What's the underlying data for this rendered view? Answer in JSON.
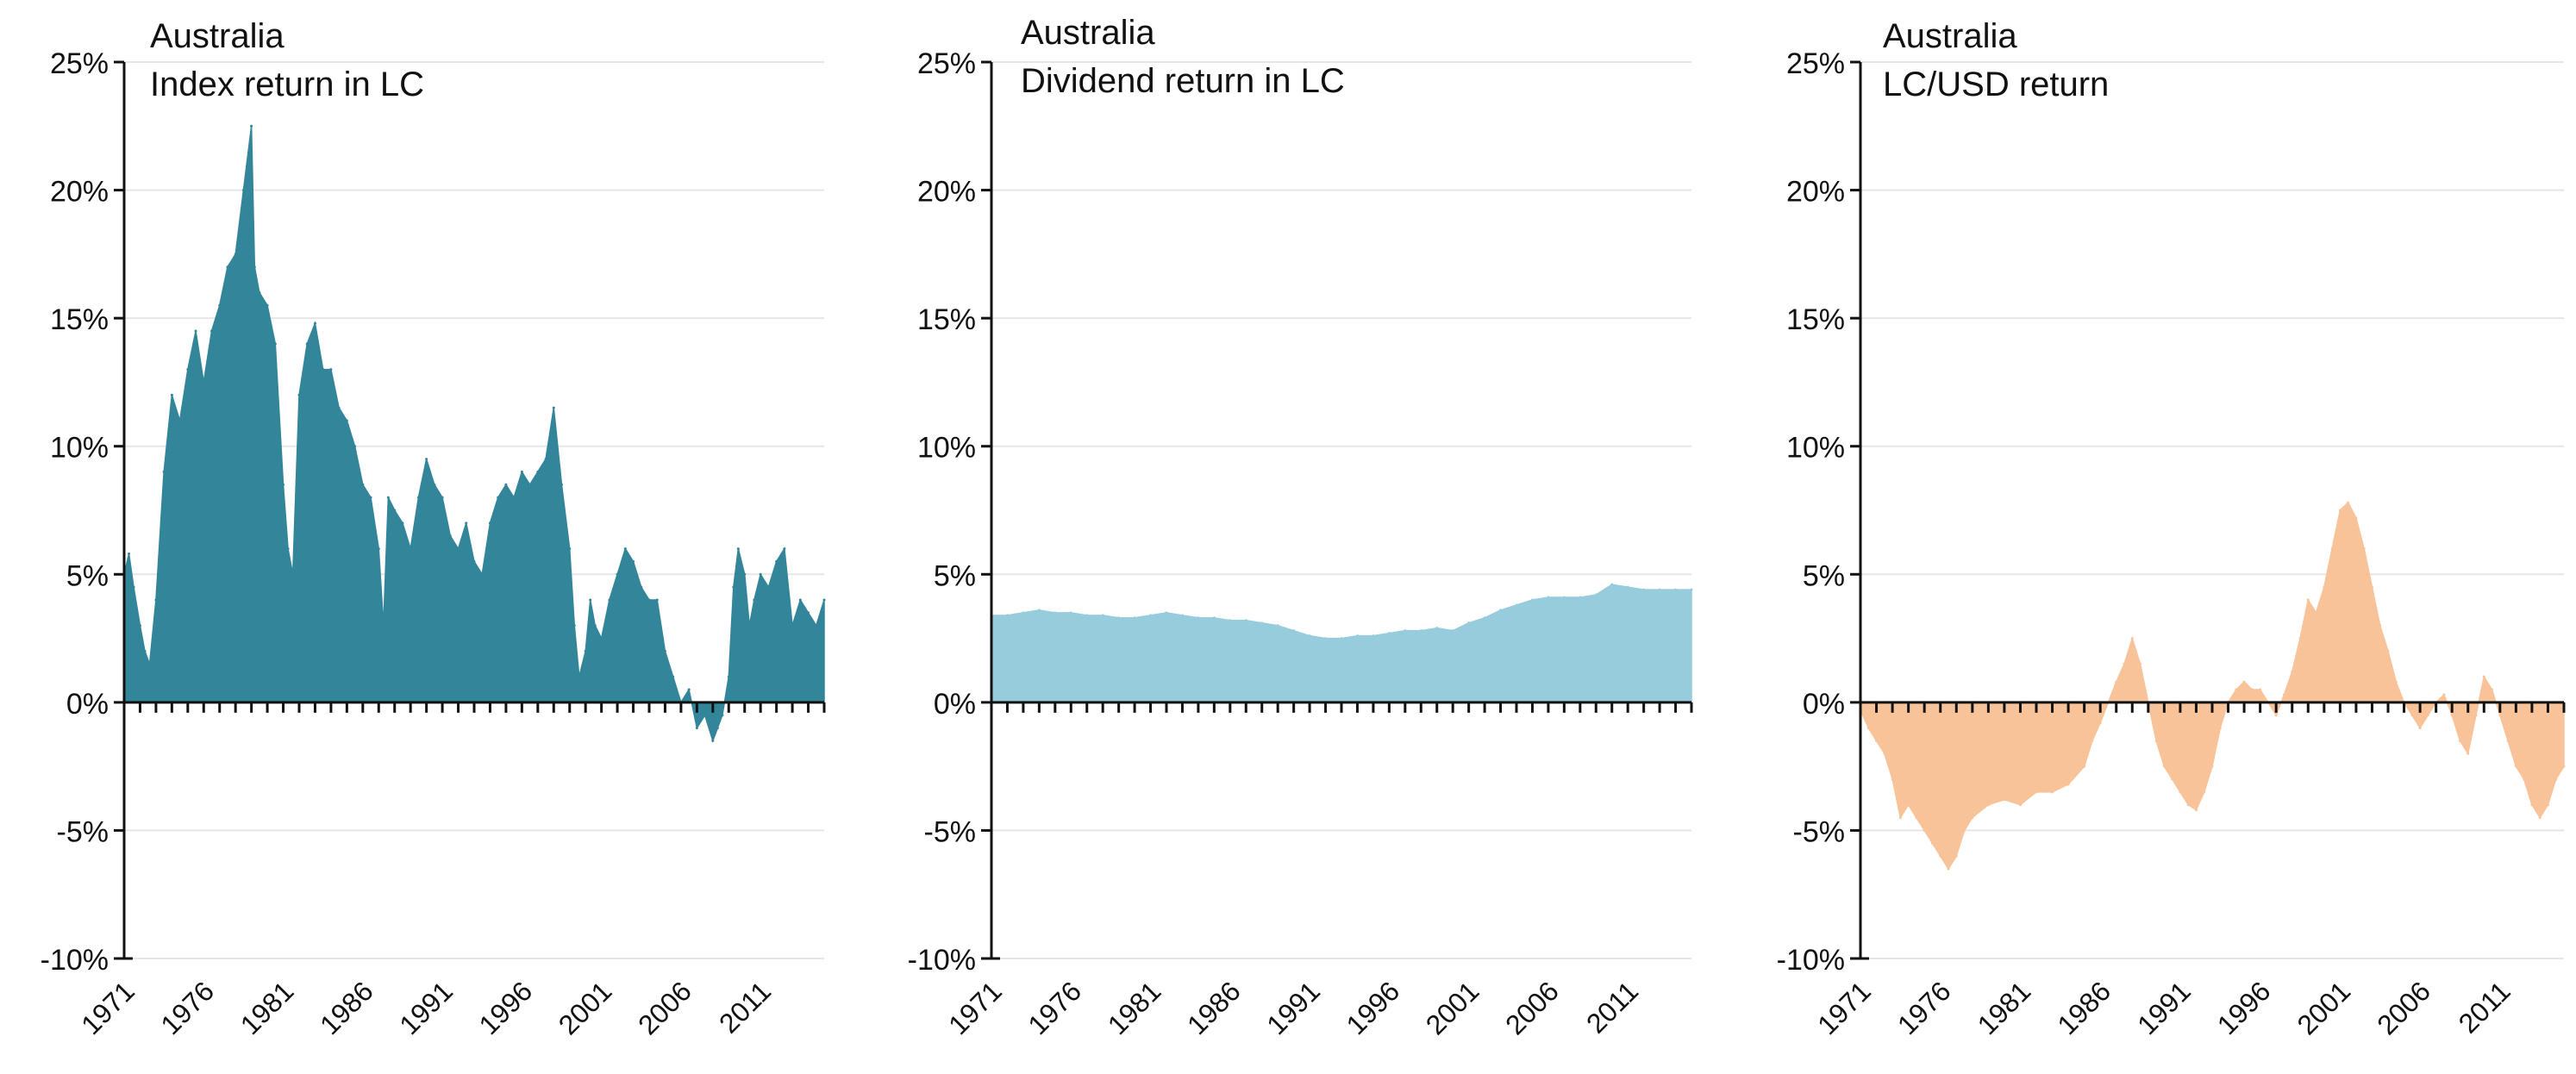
{
  "chart_data": [
    {
      "type": "area",
      "country": "Australia",
      "series_name": "Index return in LC",
      "color": "#338599",
      "ylim": [
        -0.1,
        0.25
      ],
      "yticks": [
        "-10%",
        "-5%",
        "0%",
        "5%",
        "10%",
        "15%",
        "20%",
        "25%"
      ],
      "xlim": [
        1971,
        2015
      ],
      "xticks": [
        "1971",
        "1976",
        "1981",
        "1986",
        "1991",
        "1996",
        "2001",
        "2006",
        "2011"
      ],
      "x": [
        1971.0,
        1971.3,
        1971.6,
        1972.0,
        1972.3,
        1972.6,
        1973.0,
        1973.5,
        1974.0,
        1974.5,
        1975.0,
        1975.5,
        1976.0,
        1976.5,
        1977.0,
        1977.5,
        1978.0,
        1978.5,
        1979.0,
        1979.2,
        1979.5,
        1980.0,
        1980.5,
        1981.0,
        1981.3,
        1981.6,
        1982.0,
        1982.5,
        1983.0,
        1983.5,
        1984.0,
        1984.5,
        1985.0,
        1985.5,
        1986.0,
        1986.5,
        1987.0,
        1987.3,
        1987.6,
        1988.0,
        1988.5,
        1989.0,
        1989.5,
        1990.0,
        1990.5,
        1991.0,
        1991.5,
        1992.0,
        1992.5,
        1993.0,
        1993.5,
        1994.0,
        1994.5,
        1995.0,
        1995.5,
        1996.0,
        1996.5,
        1997.0,
        1997.5,
        1998.0,
        1998.5,
        1999.0,
        1999.3,
        1999.6,
        2000.0,
        2000.3,
        2000.6,
        2001.0,
        2001.5,
        2002.0,
        2002.5,
        2003.0,
        2003.5,
        2004.0,
        2004.5,
        2005.0,
        2005.5,
        2006.0,
        2006.5,
        2007.0,
        2007.5,
        2008.0,
        2008.3,
        2008.6,
        2009.0,
        2009.3,
        2009.6,
        2010.0,
        2010.3,
        2010.6,
        2011.0,
        2011.5,
        2012.0,
        2012.5,
        2013.0,
        2013.5,
        2014.0,
        2014.5,
        2015.0
      ],
      "values": [
        0.05,
        0.058,
        0.045,
        0.03,
        0.02,
        0.015,
        0.04,
        0.09,
        0.12,
        0.11,
        0.13,
        0.145,
        0.125,
        0.145,
        0.155,
        0.17,
        0.175,
        0.2,
        0.225,
        0.17,
        0.16,
        0.155,
        0.14,
        0.085,
        0.06,
        0.05,
        0.12,
        0.14,
        0.148,
        0.13,
        0.13,
        0.115,
        0.11,
        0.1,
        0.085,
        0.08,
        0.06,
        0.03,
        0.08,
        0.075,
        0.07,
        0.06,
        0.08,
        0.095,
        0.085,
        0.08,
        0.065,
        0.06,
        0.07,
        0.055,
        0.05,
        0.07,
        0.08,
        0.085,
        0.08,
        0.09,
        0.085,
        0.09,
        0.095,
        0.115,
        0.085,
        0.06,
        0.03,
        0.01,
        0.02,
        0.04,
        0.03,
        0.025,
        0.04,
        0.05,
        0.06,
        0.055,
        0.045,
        0.04,
        0.04,
        0.02,
        0.01,
        0.0,
        0.005,
        -0.01,
        -0.005,
        -0.015,
        -0.01,
        -0.005,
        0.01,
        0.045,
        0.06,
        0.05,
        0.03,
        0.04,
        0.05,
        0.045,
        0.055,
        0.06,
        0.03,
        0.04,
        0.035,
        0.03,
        0.04
      ]
    },
    {
      "type": "area",
      "country": "Australia",
      "series_name": "Dividend return in LC",
      "color": "#96CCDC",
      "ylim": [
        -0.1,
        0.25
      ],
      "yticks": [
        "-10%",
        "-5%",
        "0%",
        "5%",
        "10%",
        "15%",
        "20%",
        "25%"
      ],
      "xlim": [
        1971,
        2015
      ],
      "xticks": [
        "1971",
        "1976",
        "1981",
        "1986",
        "1991",
        "1996",
        "2001",
        "2006",
        "2011"
      ],
      "x": [
        1971,
        1972,
        1973,
        1974,
        1975,
        1976,
        1977,
        1978,
        1979,
        1980,
        1981,
        1982,
        1983,
        1984,
        1985,
        1986,
        1987,
        1988,
        1989,
        1990,
        1991,
        1992,
        1993,
        1994,
        1995,
        1996,
        1997,
        1998,
        1999,
        2000,
        2001,
        2002,
        2003,
        2004,
        2005,
        2006,
        2007,
        2008,
        2009,
        2010,
        2011,
        2012,
        2013,
        2014,
        2015
      ],
      "values": [
        0.034,
        0.034,
        0.035,
        0.036,
        0.035,
        0.035,
        0.034,
        0.034,
        0.033,
        0.033,
        0.034,
        0.035,
        0.034,
        0.033,
        0.033,
        0.032,
        0.032,
        0.031,
        0.03,
        0.028,
        0.026,
        0.025,
        0.025,
        0.026,
        0.026,
        0.027,
        0.028,
        0.028,
        0.029,
        0.028,
        0.031,
        0.033,
        0.036,
        0.038,
        0.04,
        0.041,
        0.041,
        0.041,
        0.042,
        0.046,
        0.045,
        0.044,
        0.044,
        0.044,
        0.044
      ]
    },
    {
      "type": "area",
      "country": "Australia",
      "series_name": "LC/USD return",
      "color": "#F9C39A",
      "ylim": [
        -0.1,
        0.25
      ],
      "yticks": [
        "-10%",
        "-5%",
        "0%",
        "5%",
        "10%",
        "15%",
        "20%",
        "25%"
      ],
      "xlim": [
        1971,
        2015
      ],
      "xticks": [
        "1971",
        "1976",
        "1981",
        "1986",
        "1991",
        "1996",
        "2001",
        "2006",
        "2011"
      ],
      "x": [
        1971.0,
        1971.5,
        1972.0,
        1972.5,
        1973.0,
        1973.5,
        1974.0,
        1974.5,
        1975.0,
        1975.5,
        1976.0,
        1976.5,
        1977.0,
        1977.5,
        1978.0,
        1979.0,
        1980.0,
        1981.0,
        1982.0,
        1983.0,
        1984.0,
        1985.0,
        1985.5,
        1986.0,
        1986.5,
        1987.0,
        1987.5,
        1988.0,
        1988.5,
        1989.0,
        1989.5,
        1990.0,
        1990.5,
        1991.0,
        1991.5,
        1992.0,
        1992.5,
        1993.0,
        1993.5,
        1994.0,
        1994.5,
        1995.0,
        1995.5,
        1996.0,
        1996.5,
        1997.0,
        1997.5,
        1998.0,
        1998.5,
        1999.0,
        1999.5,
        2000.0,
        2000.5,
        2001.0,
        2001.5,
        2002.0,
        2002.5,
        2003.0,
        2003.5,
        2004.0,
        2004.5,
        2005.0,
        2005.5,
        2006.0,
        2006.5,
        2007.0,
        2007.5,
        2008.0,
        2008.5,
        2009.0,
        2009.5,
        2010.0,
        2010.5,
        2011.0,
        2011.5,
        2012.0,
        2012.5,
        2013.0,
        2013.5,
        2014.0,
        2014.5,
        2015.0
      ],
      "values": [
        -0.003,
        -0.01,
        -0.015,
        -0.02,
        -0.03,
        -0.045,
        -0.04,
        -0.045,
        -0.05,
        -0.055,
        -0.06,
        -0.065,
        -0.06,
        -0.05,
        -0.045,
        -0.04,
        -0.038,
        -0.04,
        -0.035,
        -0.035,
        -0.032,
        -0.025,
        -0.015,
        -0.008,
        0.0,
        0.008,
        0.015,
        0.025,
        0.015,
        0.0,
        -0.015,
        -0.025,
        -0.03,
        -0.035,
        -0.04,
        -0.042,
        -0.035,
        -0.025,
        -0.01,
        0.0,
        0.005,
        0.008,
        0.005,
        0.005,
        0.0,
        -0.005,
        0.003,
        0.012,
        0.025,
        0.04,
        0.035,
        0.045,
        0.06,
        0.075,
        0.078,
        0.072,
        0.06,
        0.045,
        0.03,
        0.02,
        0.008,
        0.0,
        -0.005,
        -0.01,
        -0.005,
        0.0,
        0.003,
        -0.005,
        -0.015,
        -0.02,
        -0.005,
        0.01,
        0.005,
        -0.005,
        -0.015,
        -0.025,
        -0.03,
        -0.04,
        -0.045,
        -0.04,
        -0.03,
        -0.025
      ]
    }
  ]
}
